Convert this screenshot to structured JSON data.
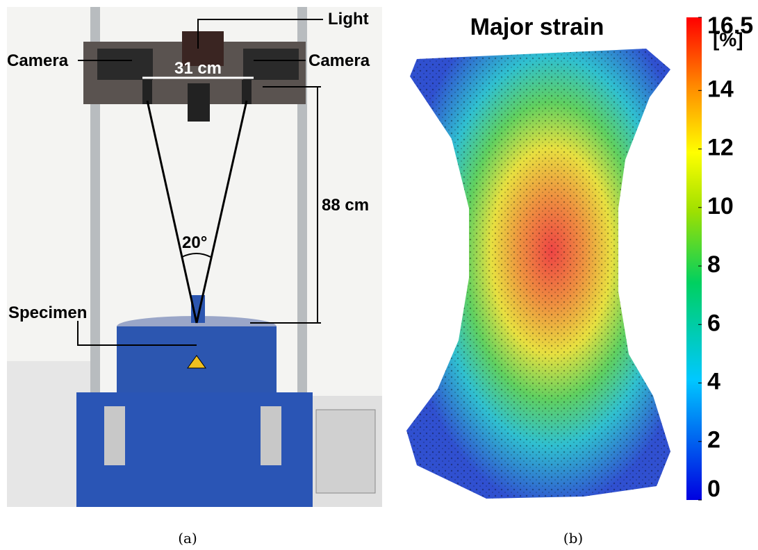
{
  "panel_a": {
    "labels": {
      "light": "Light",
      "camera_left": "Camera",
      "camera_right": "Camera",
      "width": "31 cm",
      "height": "88 cm",
      "angle": "20°",
      "specimen": "Specimen"
    },
    "caption": "(a)"
  },
  "panel_b": {
    "title": "Major strain",
    "colorbar": {
      "min": 0,
      "max": 16.5,
      "ticks": [
        0,
        2,
        4,
        6,
        8,
        10,
        12,
        14,
        16.5
      ],
      "unit": "[%]"
    },
    "caption": "(b)"
  }
}
